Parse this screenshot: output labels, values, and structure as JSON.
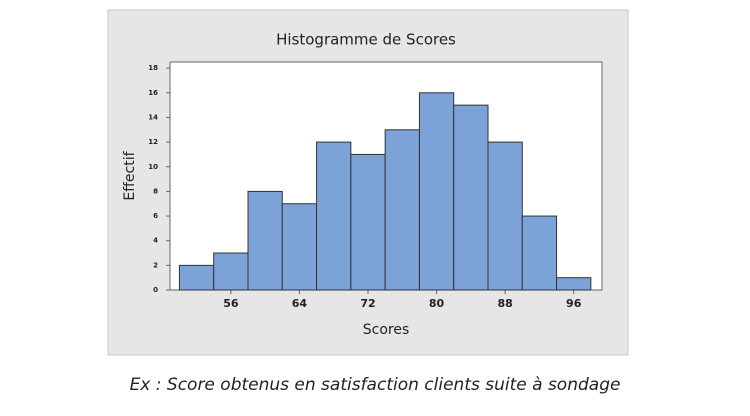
{
  "chart_data": {
    "type": "histogram",
    "title": "Histogramme de Scores",
    "x_label": "Scores",
    "y_label": "Effectif",
    "bins": [
      50,
      54,
      58,
      62,
      66,
      70,
      74,
      78,
      82,
      86,
      90,
      94,
      98
    ],
    "values": [
      2,
      3,
      8,
      7,
      12,
      11,
      13,
      16,
      15,
      12,
      6,
      1
    ],
    "color": "#7ba3d8",
    "xlim": [
      48.9,
      99.3
    ],
    "xticks": [
      56,
      64,
      72,
      80,
      88,
      96
    ],
    "ylim": [
      0,
      18.5
    ],
    "yticks": [
      0,
      2,
      4,
      6,
      8,
      10,
      12,
      14,
      16,
      18
    ]
  },
  "caption": "Ex : Score obtenus en satisfaction clients suite à sondage"
}
